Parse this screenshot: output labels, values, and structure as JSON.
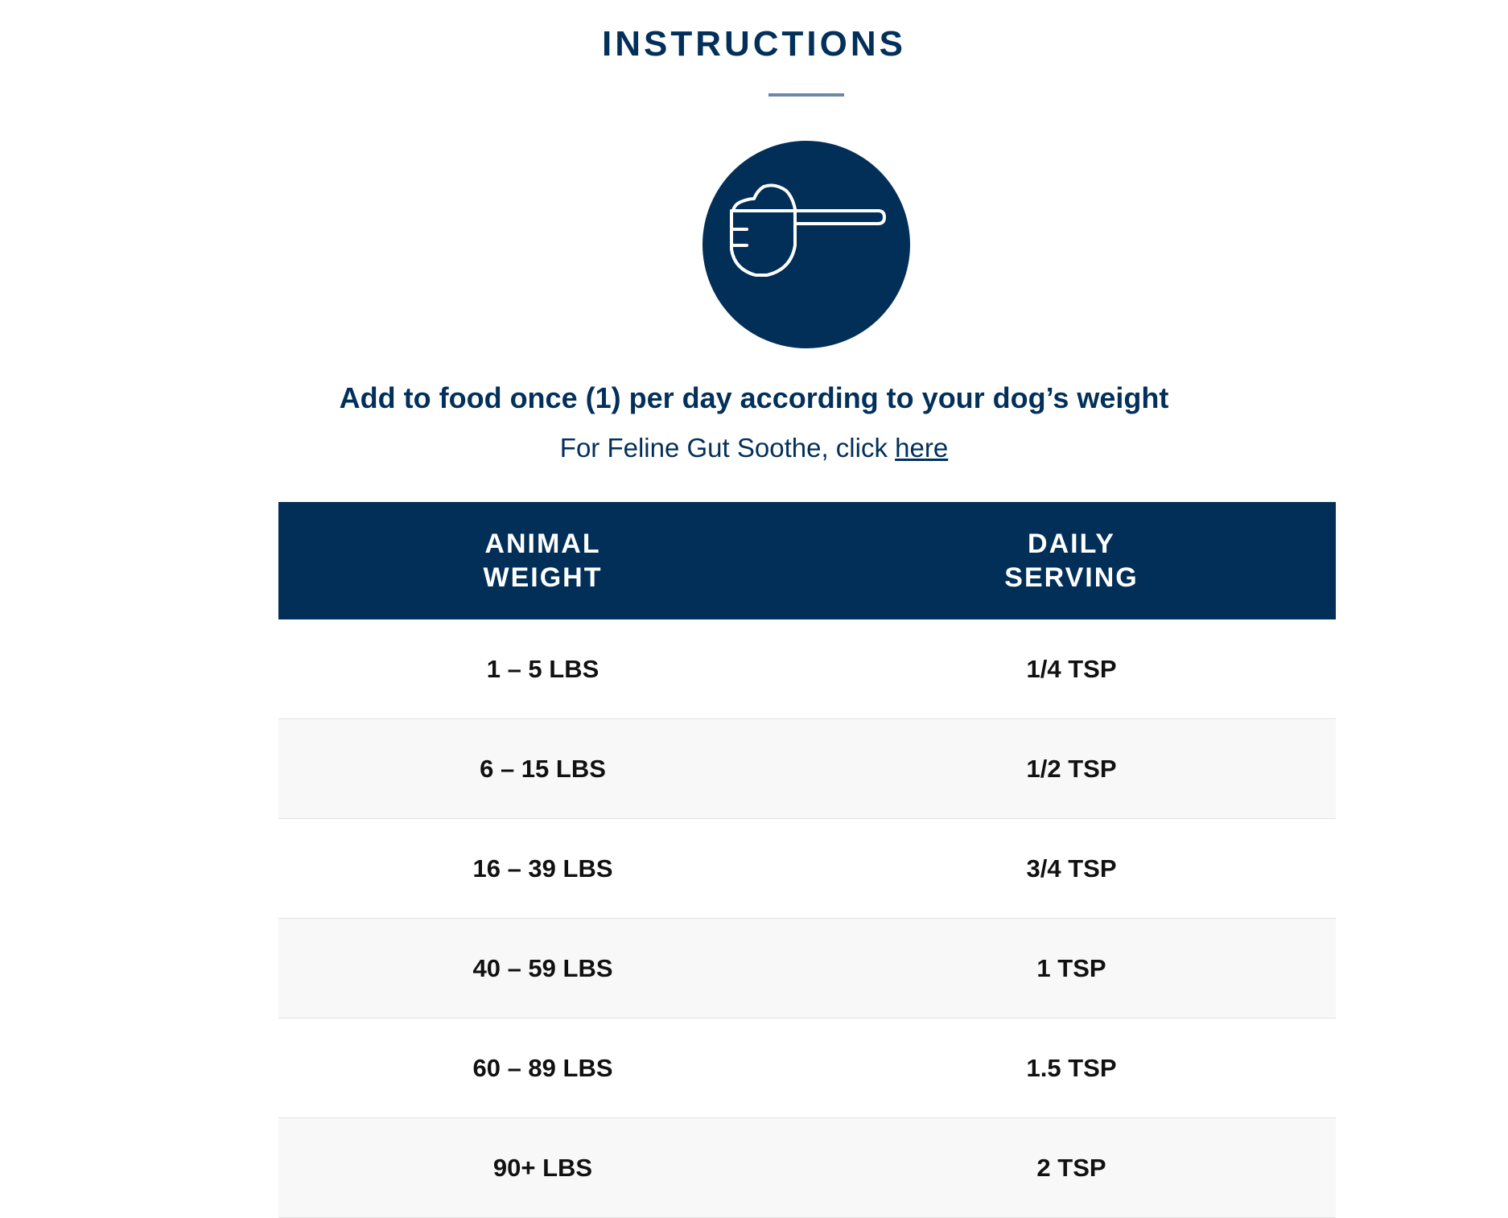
{
  "title": "INSTRUCTIONS",
  "icon": "measuring-scoop-icon",
  "heading": "Add to food once (1) per day according to your dog’s weight",
  "subtext": {
    "prefix": "For Feline Gut Soothe, click ",
    "link": "here"
  },
  "table": {
    "headers": [
      [
        "ANIMAL",
        "WEIGHT"
      ],
      [
        "DAILY",
        "SERVING"
      ]
    ],
    "rows": [
      [
        "1 – 5 LBS",
        "1/4 TSP"
      ],
      [
        "6 – 15 LBS",
        "1/2 TSP"
      ],
      [
        "16 – 39 LBS",
        "3/4 TSP"
      ],
      [
        "40 – 59 LBS",
        "1 TSP"
      ],
      [
        "60 – 89 LBS",
        "1.5 TSP"
      ],
      [
        "90+ LBS",
        "2 TSP"
      ]
    ]
  },
  "colors": {
    "brand": "#022f57",
    "divider": "#6c88a4",
    "alt_row": "#f8f8f8"
  }
}
